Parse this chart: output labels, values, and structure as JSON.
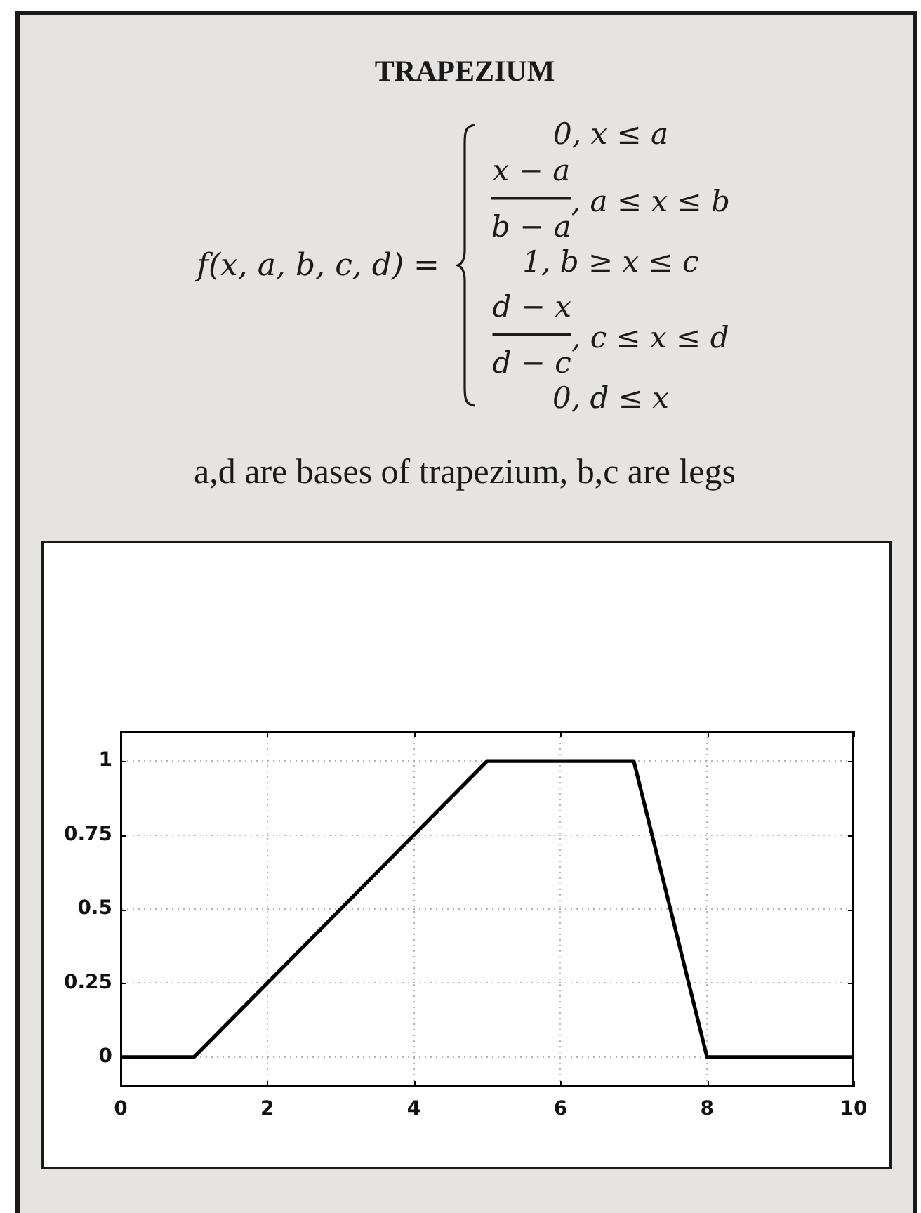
{
  "chart_data": {
    "type": "line",
    "title": "TRAPEZIUM",
    "annotations": [
      "f(x, a, b, c, d) =",
      "0, x ≤ a",
      "x − a",
      "b − a",
      ", a ≤ x ≤ b",
      "1, b ≥ x ≤ c",
      "d − x",
      "d − c",
      ", c ≤ x ≤ d",
      "0, d ≤ x",
      "a,d are bases of trapezium, b,c are legs"
    ],
    "x": [
      0,
      1,
      5,
      7,
      8,
      10
    ],
    "series": [
      {
        "color": "#000000",
        "values": [
          0,
          0,
          1,
          1,
          0,
          0
        ]
      }
    ],
    "xlim": [
      0,
      10
    ],
    "xticks": [
      0,
      2,
      4,
      6,
      8,
      10
    ],
    "ylim": [
      -0.1,
      1.1
    ],
    "yticks": [
      0,
      0.25,
      0.5,
      0.75,
      1
    ],
    "grid": true,
    "marker": "none",
    "line_style": "solid"
  }
}
